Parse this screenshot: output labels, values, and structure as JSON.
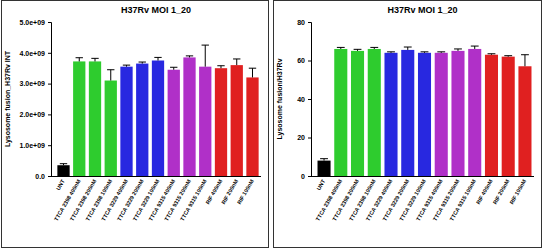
{
  "chart_data": [
    {
      "type": "bar",
      "title": "H37Rv MOI 1_20",
      "y_label": "Lysosome fusion_H37Rv INT",
      "categories": [
        "UNT",
        "TTCA 2398 400nM",
        "TTCA 2398 200nM",
        "TTCA 2398 100nM",
        "TTCA 3229 400nM",
        "TTCA 3229 200nM",
        "TTCA 3229 100nM",
        "TTCA 9315 400nM",
        "TTCA 9315 200nM",
        "TTCA 9315 100nM",
        "RIF 400nM",
        "RIF 200nM",
        "RIF 100nM"
      ],
      "values": [
        350000000,
        3720000000,
        3720000000,
        3100000000,
        3550000000,
        3650000000,
        3750000000,
        3450000000,
        3850000000,
        3550000000,
        3500000000,
        3600000000,
        3200000000
      ],
      "errors": [
        50000000,
        120000000,
        100000000,
        350000000,
        50000000,
        50000000,
        100000000,
        80000000,
        50000000,
        700000000,
        80000000,
        200000000,
        300000000
      ],
      "colors": [
        "#000000",
        "#2ecc2e",
        "#2ecc2e",
        "#2ecc2e",
        "#2828e0",
        "#2828e0",
        "#2828e0",
        "#b030c8",
        "#b030c8",
        "#b030c8",
        "#e02020",
        "#e02020",
        "#e02020"
      ],
      "ylim": [
        0,
        5000000000
      ],
      "yticks": [
        {
          "value": 0,
          "label": "0.0"
        },
        {
          "value": 1000000000,
          "label": "1.0e+09"
        },
        {
          "value": 2000000000,
          "label": "2.0e+09"
        },
        {
          "value": 3000000000,
          "label": "3.0e+09"
        },
        {
          "value": 4000000000,
          "label": "4.0e+09"
        },
        {
          "value": 5000000000,
          "label": "5.0e+09"
        }
      ]
    },
    {
      "type": "bar",
      "title": "H37Rv MOI 1_20",
      "y_label": "Lysosome fusion/H37Rv",
      "categories": [
        "UNT",
        "TTCA 2398 400nM",
        "TTCA 2398 200nM",
        "TTCA 2398 100nM",
        "TTCA 3229 400nM",
        "TTCA 3229 200nM",
        "TTCA 3229 100nM",
        "TTCA 9315 400nM",
        "TTCA 9315 200nM",
        "TTCA 9315 100nM",
        "RIF 400nM",
        "RIF 200nM",
        "RIF 100nM"
      ],
      "values": [
        8,
        66,
        65,
        66,
        64,
        65.5,
        64,
        64,
        65,
        66,
        63,
        62,
        57
      ],
      "errors": [
        1,
        0.8,
        0.8,
        0.8,
        0.5,
        1.5,
        0.5,
        0.5,
        1,
        1.5,
        0.5,
        0.5,
        6
      ],
      "colors": [
        "#000000",
        "#2ecc2e",
        "#2ecc2e",
        "#2ecc2e",
        "#2828e0",
        "#2828e0",
        "#2828e0",
        "#b030c8",
        "#b030c8",
        "#b030c8",
        "#e02020",
        "#e02020",
        "#e02020"
      ],
      "ylim": [
        0,
        80
      ],
      "yticks": [
        0,
        20,
        40,
        60,
        80
      ]
    }
  ]
}
